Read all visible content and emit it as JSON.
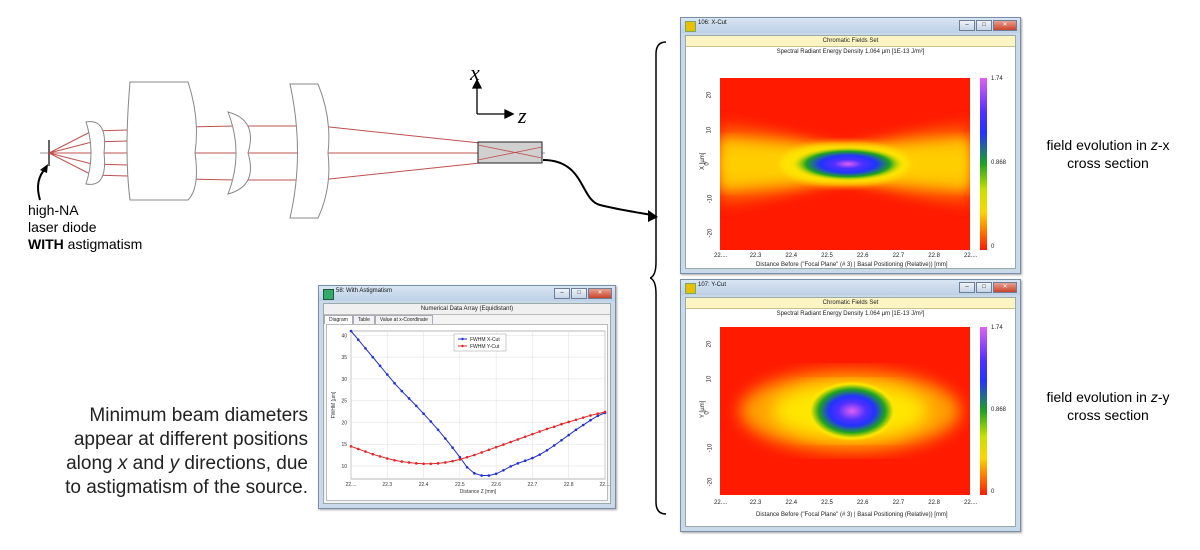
{
  "optics": {
    "axis_x": "x",
    "axis_z": "z",
    "source_line1": "high-NA",
    "source_line2": "laser diode",
    "source_bold": "WITH",
    "source_rest": " astigmatism"
  },
  "description": {
    "line1": "Minimum beam diameters",
    "line2": "appear at different positions",
    "line3a": "along ",
    "line3_x": "x",
    "line3b": " and ",
    "line3_y": "y",
    "line3c": " directions, due",
    "line4": "to astigmatism of the source."
  },
  "labels": {
    "zx_prefix": "field evolution in ",
    "zx_z": "z",
    "zx_suffix": "-x",
    "zx_line2": "cross section",
    "zy_prefix": "field evolution in ",
    "zy_z": "z",
    "zy_suffix": "-y",
    "zy_line2": "cross section"
  },
  "window_xcut": {
    "title": "106: X-Cut",
    "banner": "Chromatic Fields Set",
    "plot_title": "Spectral Radiant Energy Density 1.064 µm  [1E-13 J/m²]",
    "y_label": "X [µm]",
    "x_label": "Distance Before (\"Focal Plane\" (# 3) | Basal Positioning (Relative)) [mm]",
    "y_ticks": [
      "20",
      "10",
      "0",
      "-10",
      "-20"
    ],
    "x_ticks": [
      "22....",
      "22.3",
      "22.4",
      "22.5",
      "22.6",
      "22.7",
      "22.8",
      "22...."
    ],
    "cbar_ticks": [
      "1.74",
      "0.868",
      "0"
    ]
  },
  "window_ycut": {
    "title": "107: Y-Cut",
    "banner": "Chromatic Fields Set",
    "plot_title": "Spectral Radiant Energy Density 1.064 µm  [1E-13 J/m²]",
    "y_label": "Y [µm]",
    "x_label": "Distance Before (\"Focal Plane\" (# 3) | Basal Positioning (Relative)) [mm]",
    "y_ticks": [
      "20",
      "10",
      "0",
      "-10",
      "-20"
    ],
    "x_ticks": [
      "22....",
      "22.3",
      "22.4",
      "22.5",
      "22.6",
      "22.7",
      "22.8",
      "22...."
    ],
    "cbar_ticks": [
      "1.74",
      "0.868",
      "0"
    ]
  },
  "window_astig": {
    "title": "58: With Astigmatism",
    "banner": "Numerical Data Array (Equidistant)",
    "tabs": [
      "Diagram",
      "Table",
      "Value at x-Coordinate"
    ],
    "x_label": "Distance Z [mm]",
    "y_label": "FWHM [µm]"
  },
  "chart_data": {
    "type": "line",
    "title": "",
    "xlabel": "Distance Z [mm]",
    "ylabel": "FWHM [µm]",
    "xlim": [
      22.2,
      22.9
    ],
    "ylim": [
      7,
      41
    ],
    "x_tick_labels": [
      "22....",
      "22.3",
      "22.4",
      "22.5",
      "22.6",
      "22.7",
      "22.8",
      "22...."
    ],
    "y_ticks": [
      10,
      15,
      20,
      25,
      30,
      35,
      40
    ],
    "legend": "top-center",
    "grid": true,
    "x": [
      22.2,
      22.22,
      22.24,
      22.26,
      22.28,
      22.3,
      22.32,
      22.34,
      22.36,
      22.38,
      22.4,
      22.42,
      22.44,
      22.46,
      22.48,
      22.5,
      22.52,
      22.54,
      22.56,
      22.58,
      22.6,
      22.62,
      22.64,
      22.66,
      22.68,
      22.7,
      22.72,
      22.74,
      22.76,
      22.78,
      22.8,
      22.82,
      22.84,
      22.86,
      22.88,
      22.9
    ],
    "series": [
      {
        "name": "FWHM X-Cut",
        "color": "#1f2fd1",
        "values": [
          41.0,
          39.0,
          37.0,
          35.0,
          33.0,
          31.0,
          29.0,
          27.2,
          25.5,
          23.8,
          22.0,
          20.2,
          18.3,
          16.3,
          14.2,
          12.0,
          9.7,
          8.3,
          7.8,
          7.8,
          8.2,
          9.0,
          9.9,
          10.6,
          11.2,
          11.8,
          12.6,
          13.6,
          14.7,
          15.9,
          17.1,
          18.3,
          19.4,
          20.5,
          21.5,
          22.2
        ]
      },
      {
        "name": "FWHM Y-Cut",
        "color": "#e0262a",
        "values": [
          14.5,
          13.9,
          13.3,
          12.7,
          12.2,
          11.7,
          11.3,
          11.0,
          10.8,
          10.6,
          10.5,
          10.5,
          10.6,
          10.8,
          11.1,
          11.5,
          12.0,
          12.5,
          13.1,
          13.7,
          14.3,
          14.9,
          15.5,
          16.1,
          16.7,
          17.3,
          17.9,
          18.5,
          19.0,
          19.6,
          20.1,
          20.6,
          21.1,
          21.6,
          22.0,
          22.4
        ]
      }
    ]
  },
  "colors": {
    "ray": "#c0504d",
    "map_outer": "#ff1a00",
    "map_yellow": "#ffe600",
    "map_green": "#1fa31f",
    "map_blue": "#2233ff",
    "map_peak": "#e060f0"
  }
}
